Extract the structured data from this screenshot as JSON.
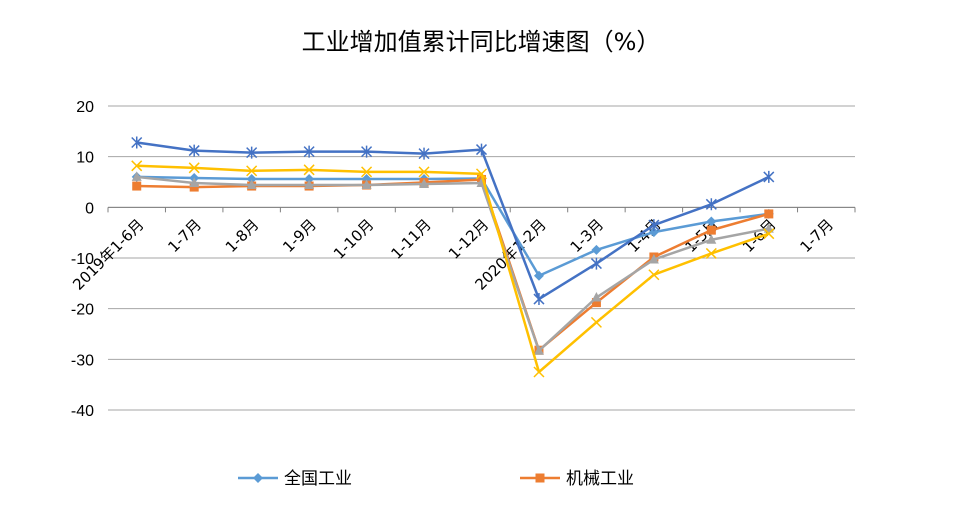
{
  "chart_data": {
    "type": "line",
    "title": "工业增加值累计同比增速图（%）",
    "categories": [
      "2019年1-6月",
      "1-7月",
      "1-8月",
      "1-9月",
      "1-10月",
      "1-11月",
      "1-12月",
      "2020年1-2月",
      "1-3月",
      "1-4月",
      "1-5月",
      "1-6月",
      "1-7月"
    ],
    "ylim": [
      -40,
      20
    ],
    "yticks": [
      20,
      10,
      0,
      -10,
      -20,
      -30,
      -40
    ],
    "grid": true,
    "legend_placement": "bottom",
    "series": [
      {
        "name": "全国工业",
        "color": "#5b9bd5",
        "marker": "diamond",
        "values": [
          6.0,
          5.8,
          5.6,
          5.6,
          5.6,
          5.6,
          5.7,
          -13.5,
          -8.4,
          -4.9,
          -2.8,
          -1.3,
          null
        ]
      },
      {
        "name": "机械工业",
        "color": "#ed7d31",
        "marker": "square",
        "values": [
          4.2,
          4.0,
          4.2,
          4.2,
          4.4,
          4.9,
          5.5,
          -28.2,
          -18.8,
          -9.8,
          -4.5,
          -1.3,
          null
        ]
      },
      {
        "name": "",
        "color": "#a5a5a5",
        "marker": "triangle",
        "values": [
          6.0,
          4.8,
          4.4,
          4.4,
          4.4,
          4.6,
          4.8,
          -28.3,
          -17.8,
          -10.3,
          -6.4,
          -4.2,
          null
        ]
      },
      {
        "name": "",
        "color": "#ffc000",
        "marker": "x",
        "values": [
          8.2,
          7.8,
          7.2,
          7.4,
          7.0,
          7.0,
          6.6,
          -32.5,
          -22.7,
          -13.3,
          -9.1,
          -5.2,
          null
        ]
      },
      {
        "name": "",
        "color": "#4472c4",
        "marker": "star",
        "values": [
          12.8,
          11.2,
          10.8,
          11.0,
          11.0,
          10.6,
          11.4,
          -18.1,
          -11.1,
          -3.5,
          0.6,
          6.0,
          null
        ]
      }
    ]
  }
}
